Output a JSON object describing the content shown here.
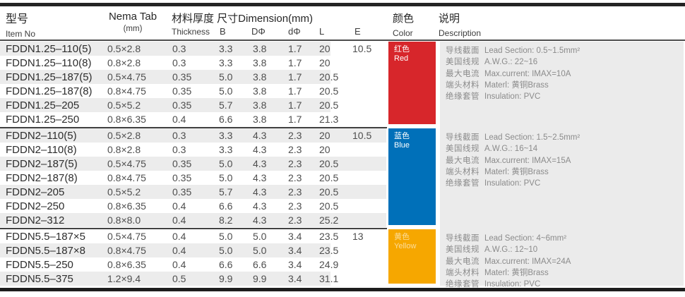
{
  "header": {
    "item_zh": "型号",
    "item_en": "Item No",
    "nema_line1": "Nema Tab",
    "nema_line2": "(mm)",
    "dim_title": "材料厚度 尺寸Dimension(mm)",
    "sub_thickness": "Thickness",
    "sub_b": "B",
    "sub_d_big": "DΦ",
    "sub_d_small": "dΦ",
    "sub_l": "L",
    "sub_e": "E",
    "color_zh": "颜色",
    "color_en": "Color",
    "desc_zh": "说明",
    "desc_en": "Description"
  },
  "groups": [
    {
      "color_name_zh": "红色",
      "color_name_en": "Red",
      "color_hex": "#d7262b",
      "e_value": "10.5",
      "rows": [
        {
          "item": "FDDN1.25–110(5)",
          "nema": "0.5×2.8",
          "thickness": "0.3",
          "b": "3.3",
          "d_big": "3.8",
          "d_small": "1.7",
          "l": "20"
        },
        {
          "item": "FDDN1.25–110(8)",
          "nema": "0.8×2.8",
          "thickness": "0.3",
          "b": "3.3",
          "d_big": "3.8",
          "d_small": "1.7",
          "l": "20"
        },
        {
          "item": "FDDN1.25–187(5)",
          "nema": "0.5×4.75",
          "thickness": "0.35",
          "b": "5.0",
          "d_big": "3.8",
          "d_small": "1.7",
          "l": "20.5"
        },
        {
          "item": "FDDN1.25–187(8)",
          "nema": "0.8×4.75",
          "thickness": "0.35",
          "b": "5.0",
          "d_big": "3.8",
          "d_small": "1.7",
          "l": "20.5"
        },
        {
          "item": "FDDN1.25–205",
          "nema": "0.5×5.2",
          "thickness": "0.35",
          "b": "5.7",
          "d_big": "3.8",
          "d_small": "1.7",
          "l": "20.5"
        },
        {
          "item": "FDDN1.25–250",
          "nema": "0.8×6.35",
          "thickness": "0.4",
          "b": "6.6",
          "d_big": "3.8",
          "d_small": "1.7",
          "l": "21.3"
        }
      ],
      "description": [
        {
          "zh": "导线截面",
          "en": "Lead Section: 0.5~1.5mm²"
        },
        {
          "zh": "美国线规",
          "en": "A.W.G.: 22~16"
        },
        {
          "zh": "最大电流",
          "en": "Max.current: IMAX=10A"
        },
        {
          "zh": "端头材料",
          "en": "Materl: 黄铜Brass"
        },
        {
          "zh": "绝缘套管",
          "en": "Insulation: PVC"
        }
      ]
    },
    {
      "color_name_zh": "蓝色",
      "color_name_en": "Blue",
      "color_hex": "#0070b9",
      "e_value": "10.5",
      "rows": [
        {
          "item": "FDDN2–110(5)",
          "nema": "0.5×2.8",
          "thickness": "0.3",
          "b": "3.3",
          "d_big": "4.3",
          "d_small": "2.3",
          "l": "20"
        },
        {
          "item": "FDDN2–110(8)",
          "nema": "0.8×2.8",
          "thickness": "0.3",
          "b": "3.3",
          "d_big": "4.3",
          "d_small": "2.3",
          "l": "20"
        },
        {
          "item": "FDDN2–187(5)",
          "nema": "0.5×4.75",
          "thickness": "0.35",
          "b": "5.0",
          "d_big": "4.3",
          "d_small": "2.3",
          "l": "20.5"
        },
        {
          "item": "FDDN2–187(8)",
          "nema": "0.8×4.75",
          "thickness": "0.35",
          "b": "5.0",
          "d_big": "4.3",
          "d_small": "2.3",
          "l": "20.5"
        },
        {
          "item": "FDDN2–205",
          "nema": "0.5×5.2",
          "thickness": "0.35",
          "b": "5.7",
          "d_big": "4.3",
          "d_small": "2.3",
          "l": "20.5"
        },
        {
          "item": "FDDN2–250",
          "nema": "0.8×6.35",
          "thickness": "0.4",
          "b": "6.6",
          "d_big": "4.3",
          "d_small": "2.3",
          "l": "20.5"
        },
        {
          "item": "FDDN2–312",
          "nema": "0.8×8.0",
          "thickness": "0.4",
          "b": "8.2",
          "d_big": "4.3",
          "d_small": "2.3",
          "l": "25.2"
        }
      ],
      "description": [
        {
          "zh": "导线截面",
          "en": "Lead Section: 1.5~2.5mm²"
        },
        {
          "zh": "美国线规",
          "en": "A.W.G.: 16~14"
        },
        {
          "zh": "最大电流",
          "en": "Max.current: IMAX=15A"
        },
        {
          "zh": "端头材料",
          "en": "Materl: 黄铜Brass"
        },
        {
          "zh": "绝缘套管",
          "en": "Insulation: PVC"
        }
      ]
    },
    {
      "color_name_zh": "黄色",
      "color_name_en": "Yellow",
      "color_hex": "#f6a700",
      "e_value": "13",
      "rows": [
        {
          "item": "FDDN5.5–187×5",
          "nema": "0.5×4.75",
          "thickness": "0.4",
          "b": "5.0",
          "d_big": "5.0",
          "d_small": "3.4",
          "l": "23.5"
        },
        {
          "item": "FDDN5.5–187×8",
          "nema": "0.8×4.75",
          "thickness": "0.4",
          "b": "5.0",
          "d_big": "5.0",
          "d_small": "3.4",
          "l": "23.5"
        },
        {
          "item": "FDDN5.5–250",
          "nema": "0.8×6.35",
          "thickness": "0.4",
          "b": "6.6",
          "d_big": "6.6",
          "d_small": "3.4",
          "l": "24.9"
        },
        {
          "item": "FDDN5.5–375",
          "nema": "1.2×9.4",
          "thickness": "0.5",
          "b": "9.9",
          "d_big": "9.9",
          "d_small": "3.4",
          "l": "31.1"
        }
      ],
      "description": [
        {
          "zh": "导线截面",
          "en": "Lead Section: 4~6mm²"
        },
        {
          "zh": "美国线规",
          "en": "A.W.G.: 12~10"
        },
        {
          "zh": "最大电流",
          "en": "Max.current: IMAX=24A"
        },
        {
          "zh": "端头材料",
          "en": "Materl: 黄铜Brass"
        },
        {
          "zh": "绝缘套管",
          "en": "Insulation: PVC"
        }
      ]
    }
  ]
}
